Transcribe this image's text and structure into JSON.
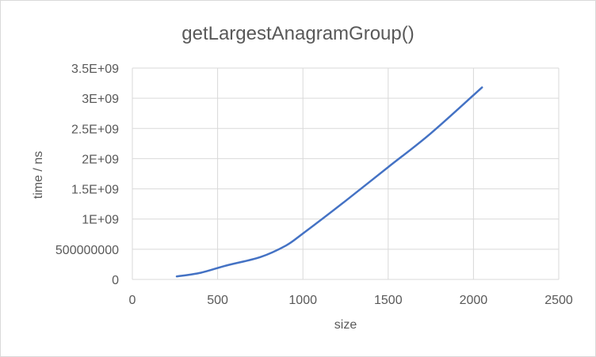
{
  "chart_data": {
    "type": "scatter",
    "title": "getLargestAnagramGroup()",
    "xlabel": "size",
    "ylabel": "time / ns",
    "xlim": [
      0,
      2500
    ],
    "ylim": [
      0,
      3500000000
    ],
    "x_ticks": [
      0,
      500,
      1000,
      1500,
      2000,
      2500
    ],
    "x_tick_labels": [
      "0",
      "500",
      "1000",
      "1500",
      "2000",
      "2500"
    ],
    "y_ticks": [
      0,
      500000000,
      1000000000,
      1500000000,
      2000000000,
      2500000000,
      3000000000,
      3500000000
    ],
    "y_tick_labels": [
      "0",
      "500000000",
      "1E+09",
      "1.5E+09",
      "2E+09",
      "2.5E+09",
      "3E+09",
      "3.5E+09"
    ],
    "grid": "vertical and horizontal",
    "legend": "none",
    "line_style": "smooth line, no markers",
    "series": [
      {
        "color": "#4472c4",
        "x": [
          260,
          400,
          550,
          750,
          900,
          1000,
          1250,
          1500,
          1750,
          2050
        ],
        "y": [
          50000000,
          110000000,
          230000000,
          370000000,
          560000000,
          760000000,
          1300000000,
          1860000000,
          2420000000,
          3180000000
        ]
      }
    ]
  }
}
